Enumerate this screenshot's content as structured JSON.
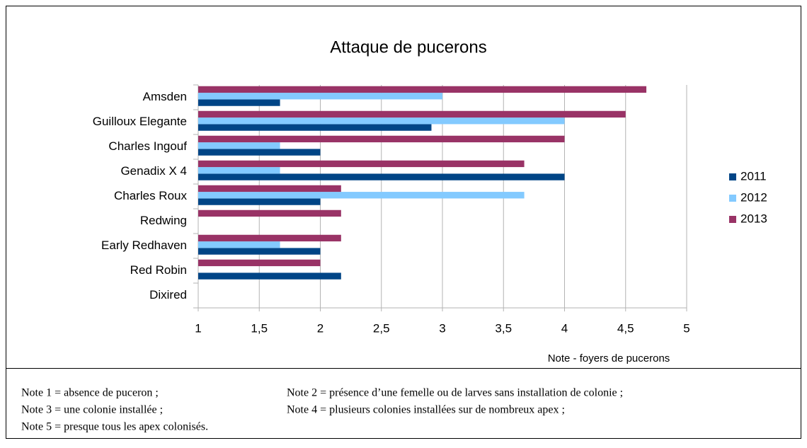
{
  "chart_data": {
    "type": "hbar",
    "title": "Attaque de pucerons",
    "xlabel": "Note - foyers de pucerons",
    "categories": [
      "Amsden",
      "Guilloux Elegante",
      "Charles Ingouf",
      "Genadix X 4",
      "Charles Roux",
      "Redwing",
      "Early Redhaven",
      "Red Robin",
      "Dixired"
    ],
    "series": [
      {
        "name": "2011",
        "color": "#004586",
        "values": [
          1.67,
          2.91,
          2,
          4,
          2,
          1,
          2,
          2.17,
          1
        ]
      },
      {
        "name": "2012",
        "color": "#83caff",
        "values": [
          3,
          4,
          1.67,
          1.67,
          3.67,
          1,
          1.67,
          1,
          1
        ]
      },
      {
        "name": "2013",
        "color": "#993366",
        "values": [
          4.67,
          4.5,
          4,
          3.67,
          2.17,
          2.17,
          2.17,
          2,
          1
        ]
      }
    ],
    "xlim": [
      1,
      5
    ],
    "xticks": [
      1,
      {
        "value": 1.5,
        "label": "1,5"
      },
      2,
      {
        "value": 2.5,
        "label": "2,5"
      },
      3,
      {
        "value": 3.5,
        "label": "3,5"
      },
      4,
      {
        "value": 4.5,
        "label": "4,5"
      },
      5
    ],
    "grid": true,
    "legend": "right"
  },
  "notes": [
    [
      "Note 1 = absence de puceron ;",
      "Note 2 = présence d’une femelle ou de larves sans installation de colonie ;"
    ],
    [
      "Note 3 = une colonie installée ;",
      "Note 4 = plusieurs colonies installées sur de nombreux apex ;"
    ],
    [
      "Note 5 = presque tous les apex colonisés."
    ]
  ]
}
